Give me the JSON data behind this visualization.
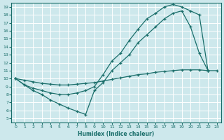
{
  "xlabel": "Humidex (Indice chaleur)",
  "bg_color": "#cde8ec",
  "grid_color": "#ffffff",
  "line_color": "#1a6e6a",
  "xlim": [
    -0.5,
    23.5
  ],
  "ylim": [
    4.5,
    19.5
  ],
  "xticks": [
    0,
    1,
    2,
    3,
    4,
    5,
    6,
    7,
    8,
    9,
    10,
    11,
    12,
    13,
    14,
    15,
    16,
    17,
    18,
    19,
    20,
    21,
    22,
    23
  ],
  "yticks": [
    5,
    6,
    7,
    8,
    9,
    10,
    11,
    12,
    13,
    14,
    15,
    16,
    17,
    18,
    19
  ],
  "curve_top_x": [
    0,
    1,
    2,
    3,
    4,
    5,
    6,
    7,
    8,
    9,
    10,
    11,
    12,
    13,
    14,
    15,
    16,
    17,
    18,
    19,
    20,
    21,
    22
  ],
  "curve_top_y": [
    10.0,
    9.2,
    8.8,
    8.5,
    8.2,
    8.0,
    8.0,
    8.2,
    8.5,
    9.0,
    10.5,
    12.2,
    13.2,
    14.8,
    16.2,
    17.5,
    18.2,
    19.0,
    19.3,
    19.0,
    18.5,
    18.0,
    11.0
  ],
  "curve_mid_x": [
    0,
    1,
    2,
    3,
    4,
    5,
    6,
    7,
    8,
    9,
    10,
    11,
    12,
    13,
    14,
    15,
    16,
    17,
    18,
    19,
    20,
    21,
    22,
    23
  ],
  "curve_mid_y": [
    10.0,
    9.8,
    9.6,
    9.4,
    9.3,
    9.2,
    9.2,
    9.3,
    9.4,
    9.5,
    9.7,
    9.9,
    10.1,
    10.3,
    10.5,
    10.6,
    10.8,
    10.9,
    11.0,
    11.1,
    11.1,
    11.1,
    11.0,
    11.0
  ],
  "curve_bot_x": [
    0,
    1,
    2,
    3,
    4,
    5,
    6,
    7,
    8,
    9,
    10,
    11,
    12,
    13,
    14,
    15,
    16,
    17,
    18,
    19,
    20,
    21,
    22
  ],
  "curve_bot_y": [
    10.0,
    9.2,
    8.5,
    8.0,
    7.3,
    6.8,
    6.3,
    5.9,
    5.5,
    8.5,
    9.5,
    11.0,
    12.0,
    13.0,
    14.5,
    15.5,
    16.5,
    17.5,
    18.2,
    18.5,
    16.5,
    13.2,
    11.0
  ]
}
